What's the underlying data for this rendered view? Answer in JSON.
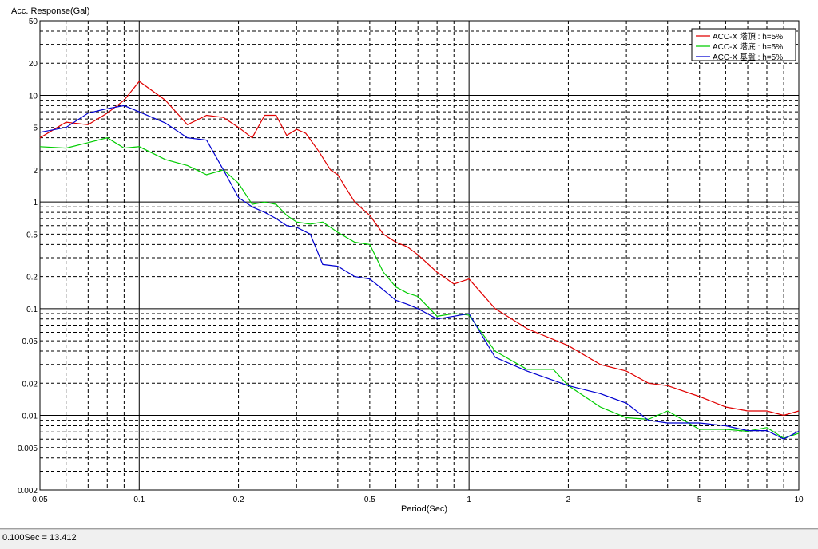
{
  "chart_data": {
    "type": "line",
    "title": "",
    "ylabel": "Acc. Response(Gal)",
    "xlabel": "Period(Sec)",
    "x_scale": "log",
    "y_scale": "log",
    "xlim": [
      0.05,
      10
    ],
    "ylim": [
      0.002,
      50
    ],
    "grid": true,
    "legend_position": "top-right",
    "x_ticks": [
      "0.05",
      "0.1",
      "0.2",
      "0.5",
      "1",
      "2",
      "5",
      "10"
    ],
    "y_ticks": [
      "50",
      "20",
      "10",
      "5",
      "2",
      "1",
      "0.5",
      "0.2",
      "0.1",
      "0.05",
      "0.02",
      "0.01",
      "0.005",
      "0.002"
    ],
    "series": [
      {
        "name": "ACC-X 塔頂 : h=5%",
        "color": "#e00000",
        "x": [
          0.05,
          0.06,
          0.07,
          0.08,
          0.09,
          0.1,
          0.12,
          0.14,
          0.16,
          0.18,
          0.2,
          0.22,
          0.24,
          0.26,
          0.28,
          0.3,
          0.32,
          0.35,
          0.38,
          0.4,
          0.45,
          0.5,
          0.55,
          0.6,
          0.65,
          0.7,
          0.8,
          0.9,
          1.0,
          1.2,
          1.5,
          2.0,
          2.5,
          3.0,
          3.5,
          4.0,
          5.0,
          6.0,
          7.0,
          8.0,
          9.0,
          10.0
        ],
        "values": [
          4.0,
          5.6,
          5.3,
          6.8,
          9.0,
          13.5,
          9.0,
          5.3,
          6.5,
          6.2,
          5.0,
          4.0,
          6.5,
          6.5,
          4.2,
          4.8,
          4.4,
          3.0,
          2.0,
          1.8,
          1.0,
          0.75,
          0.5,
          0.42,
          0.38,
          0.32,
          0.22,
          0.17,
          0.19,
          0.1,
          0.065,
          0.045,
          0.03,
          0.026,
          0.02,
          0.019,
          0.015,
          0.012,
          0.011,
          0.011,
          0.01,
          0.011
        ]
      },
      {
        "name": "ACC-X 塔底 : h=5%",
        "color": "#00cc00",
        "x": [
          0.05,
          0.06,
          0.07,
          0.08,
          0.09,
          0.1,
          0.12,
          0.14,
          0.16,
          0.18,
          0.2,
          0.22,
          0.24,
          0.26,
          0.28,
          0.3,
          0.33,
          0.36,
          0.4,
          0.45,
          0.5,
          0.55,
          0.6,
          0.65,
          0.7,
          0.8,
          0.9,
          1.0,
          1.2,
          1.5,
          1.8,
          2.0,
          2.5,
          3.0,
          3.5,
          4.0,
          5.0,
          6.0,
          7.0,
          8.0,
          9.0,
          10.0
        ],
        "values": [
          3.3,
          3.2,
          3.6,
          4.0,
          3.2,
          3.3,
          2.5,
          2.2,
          1.8,
          2.0,
          1.5,
          0.95,
          1.0,
          0.95,
          0.75,
          0.65,
          0.62,
          0.65,
          0.52,
          0.42,
          0.4,
          0.22,
          0.16,
          0.14,
          0.13,
          0.085,
          0.09,
          0.087,
          0.04,
          0.027,
          0.027,
          0.019,
          0.012,
          0.0095,
          0.0092,
          0.011,
          0.0074,
          0.0074,
          0.0071,
          0.0077,
          0.0061,
          0.0068
        ]
      },
      {
        "name": "ACC-X 基盤 : h=5%",
        "color": "#0000d0",
        "x": [
          0.05,
          0.06,
          0.07,
          0.08,
          0.09,
          0.1,
          0.12,
          0.14,
          0.16,
          0.18,
          0.2,
          0.22,
          0.24,
          0.26,
          0.28,
          0.3,
          0.33,
          0.36,
          0.4,
          0.45,
          0.5,
          0.55,
          0.6,
          0.65,
          0.7,
          0.8,
          0.9,
          1.0,
          1.2,
          1.5,
          2.0,
          2.5,
          3.0,
          3.5,
          4.0,
          5.0,
          6.0,
          7.0,
          8.0,
          9.0,
          10.0
        ],
        "values": [
          4.5,
          5.0,
          6.8,
          7.5,
          8.0,
          7.0,
          5.5,
          4.0,
          3.8,
          2.0,
          1.1,
          0.9,
          0.8,
          0.7,
          0.6,
          0.58,
          0.5,
          0.26,
          0.25,
          0.2,
          0.19,
          0.15,
          0.12,
          0.11,
          0.1,
          0.08,
          0.085,
          0.09,
          0.035,
          0.026,
          0.019,
          0.016,
          0.013,
          0.009,
          0.0085,
          0.0085,
          0.008,
          0.0072,
          0.0072,
          0.006,
          0.0071
        ]
      }
    ]
  },
  "status_bar": {
    "text": "0.100Sec = 13.412"
  }
}
